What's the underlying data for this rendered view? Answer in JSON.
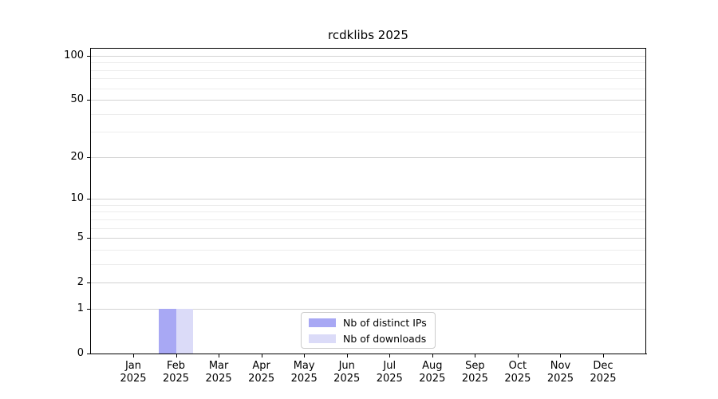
{
  "chart_data": {
    "type": "bar",
    "title": "rcdklibs 2025",
    "x_tick_labels": [
      [
        "Jan",
        "2025"
      ],
      [
        "Feb",
        "2025"
      ],
      [
        "Mar",
        "2025"
      ],
      [
        "Apr",
        "2025"
      ],
      [
        "May",
        "2025"
      ],
      [
        "Jun",
        "2025"
      ],
      [
        "Jul",
        "2025"
      ],
      [
        "Aug",
        "2025"
      ],
      [
        "Sep",
        "2025"
      ],
      [
        "Oct",
        "2025"
      ],
      [
        "Nov",
        "2025"
      ],
      [
        "Dec",
        "2025"
      ]
    ],
    "series": [
      {
        "name": "Nb of distinct IPs",
        "color": "#a8a8f4",
        "values": [
          0,
          1,
          0,
          0,
          0,
          0,
          0,
          0,
          0,
          0,
          0,
          0
        ]
      },
      {
        "name": "Nb of downloads",
        "color": "#dbdbf8",
        "values": [
          0,
          1,
          0,
          0,
          0,
          0,
          0,
          0,
          0,
          0,
          0,
          0
        ]
      }
    ],
    "y_axis": {
      "scale": "log10(1+v)",
      "major_ticks": [
        0,
        1,
        2,
        5,
        10,
        20,
        50,
        100
      ],
      "minor_gridlines": [
        3,
        4,
        6,
        7,
        8,
        9,
        30,
        40,
        60,
        70,
        80,
        90
      ],
      "range": [
        0,
        113
      ]
    },
    "grid": "horizontal",
    "legend_position": "bottom-center",
    "colors": {
      "major_grid": "#d2d2d2",
      "minor_grid": "#ededed",
      "spine": "#000000",
      "background": "#ffffff"
    }
  }
}
